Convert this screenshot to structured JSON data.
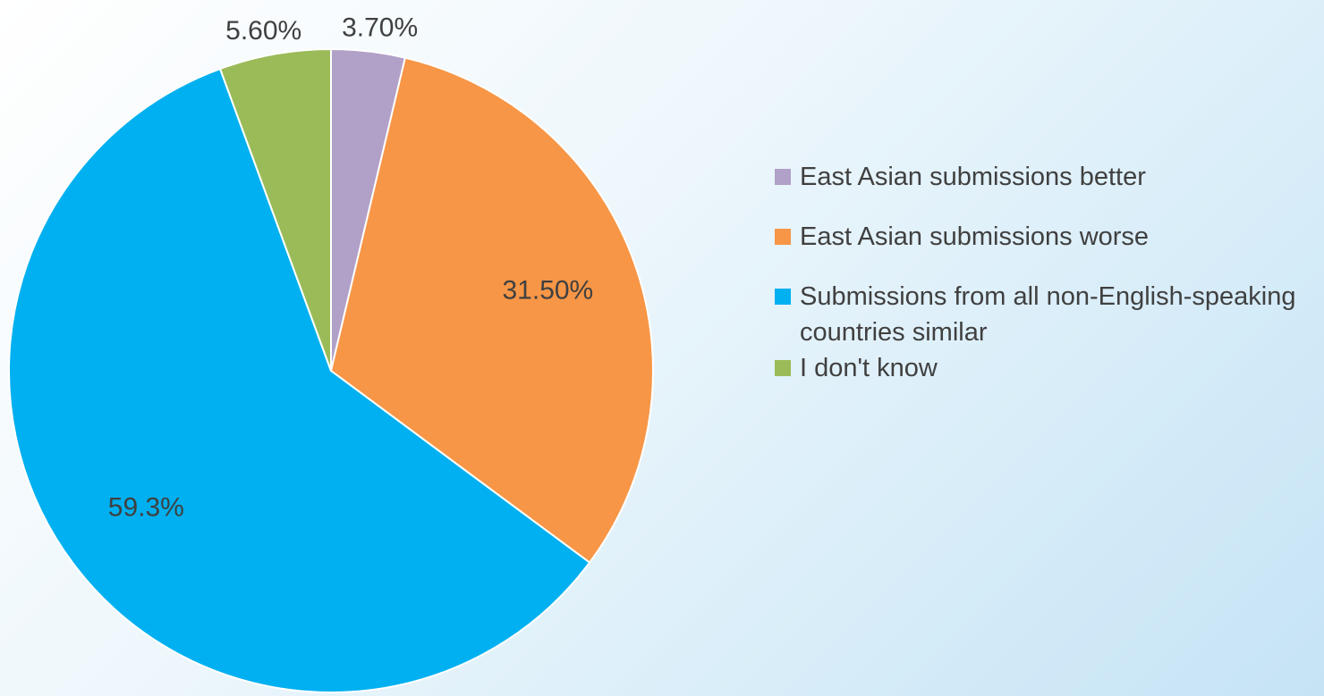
{
  "chart_data": {
    "type": "pie",
    "categories": [
      "East Asian submissions better",
      "East Asian submissions worse",
      "Submissions from all non-English-speaking countries similar",
      "I don't know"
    ],
    "values": [
      3.7,
      31.5,
      59.3,
      5.6
    ],
    "value_labels": [
      "3.70%",
      "31.50%",
      "59.3%",
      "5.60%"
    ],
    "colors": [
      "#b1a0c7",
      "#f79646",
      "#00b0f0",
      "#9bbb59"
    ],
    "legend": "right"
  }
}
